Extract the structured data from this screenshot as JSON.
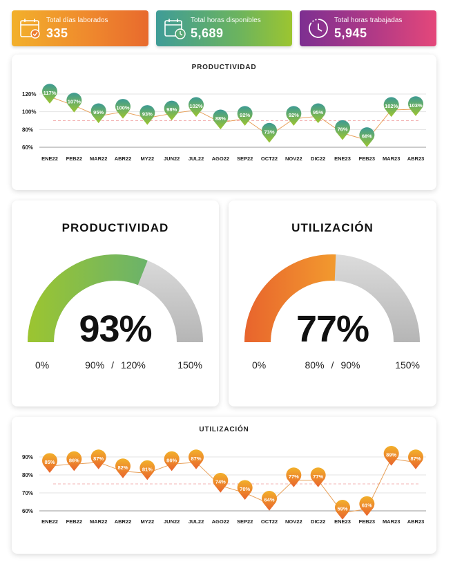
{
  "kpis": [
    {
      "label": "Total días laborados",
      "value": "335",
      "icon": "calendar-check-icon"
    },
    {
      "label": "Total horas disponibles",
      "value": "5,689",
      "icon": "calendar-clock-icon"
    },
    {
      "label": "Total horas trabajadas",
      "value": "5,945",
      "icon": "clock-icon"
    }
  ],
  "gauges": [
    {
      "title": "PRODUCTIVIDAD",
      "value_label": "93%",
      "value": 93,
      "min_label": "0%",
      "max_label": "150%",
      "target_low": "90%",
      "target_high": "120%",
      "separator": "/",
      "min": 0,
      "max": 150
    },
    {
      "title": "UTILIZACIÓN",
      "value_label": "77%",
      "value": 77,
      "min_label": "0%",
      "max_label": "150%",
      "target_low": "80%",
      "target_high": "90%",
      "separator": "/",
      "min": 0,
      "max": 150
    }
  ],
  "chart_data": [
    {
      "type": "line",
      "title": "PRODUCTIVIDAD",
      "categories": [
        "ENE22",
        "FEB22",
        "MAR22",
        "ABR22",
        "MY22",
        "JUN22",
        "JUL22",
        "AGO22",
        "SEP22",
        "OCT22",
        "NOV22",
        "DIC22",
        "ENE23",
        "FEB23",
        "MAR23",
        "ABR23"
      ],
      "values": [
        117,
        107,
        95,
        100,
        93,
        98,
        102,
        88,
        92,
        73,
        92,
        95,
        76,
        68,
        102,
        103
      ],
      "value_labels": [
        "117%",
        "107%",
        "95%",
        "100%",
        "93%",
        "98%",
        "102%",
        "88%",
        "92%",
        "73%",
        "92%",
        "95%",
        "76%",
        "68%",
        "102%",
        "103%"
      ],
      "y_ticks": [
        120,
        100,
        80,
        60
      ],
      "y_tick_labels": [
        "120%",
        "100%",
        "80%",
        "60%"
      ],
      "ylim": [
        60,
        120
      ],
      "target_line": 90,
      "colors": {
        "marker_top": "#3d9a93",
        "marker_bottom": "#9cc530",
        "line": "#e8a15b",
        "target": "#f3b3b3"
      }
    },
    {
      "type": "line",
      "title": "UTILIZACIÓN",
      "categories": [
        "ENE22",
        "FEB22",
        "MAR22",
        "ABR22",
        "MY22",
        "JUN22",
        "JUL22",
        "AGO22",
        "SEP22",
        "OCT22",
        "NOV22",
        "DIC22",
        "ENE23",
        "FEB23",
        "MAR23",
        "ABR23"
      ],
      "values": [
        85,
        86,
        87,
        82,
        81,
        86,
        87,
        74,
        70,
        64,
        77,
        77,
        59,
        61,
        89,
        87
      ],
      "value_labels": [
        "85%",
        "86%",
        "87%",
        "82%",
        "81%",
        "86%",
        "87%",
        "74%",
        "70%",
        "64%",
        "77%",
        "77%",
        "59%",
        "61%",
        "89%",
        "87%"
      ],
      "y_ticks": [
        90,
        80,
        70,
        60
      ],
      "y_tick_labels": [
        "90%",
        "80%",
        "70%",
        "60%"
      ],
      "ylim": [
        60,
        90
      ],
      "target_line": 75,
      "colors": {
        "marker_top": "#f2b02b",
        "marker_bottom": "#e8642d",
        "line": "#e8a15b",
        "target": "#f3b3b3"
      }
    }
  ]
}
